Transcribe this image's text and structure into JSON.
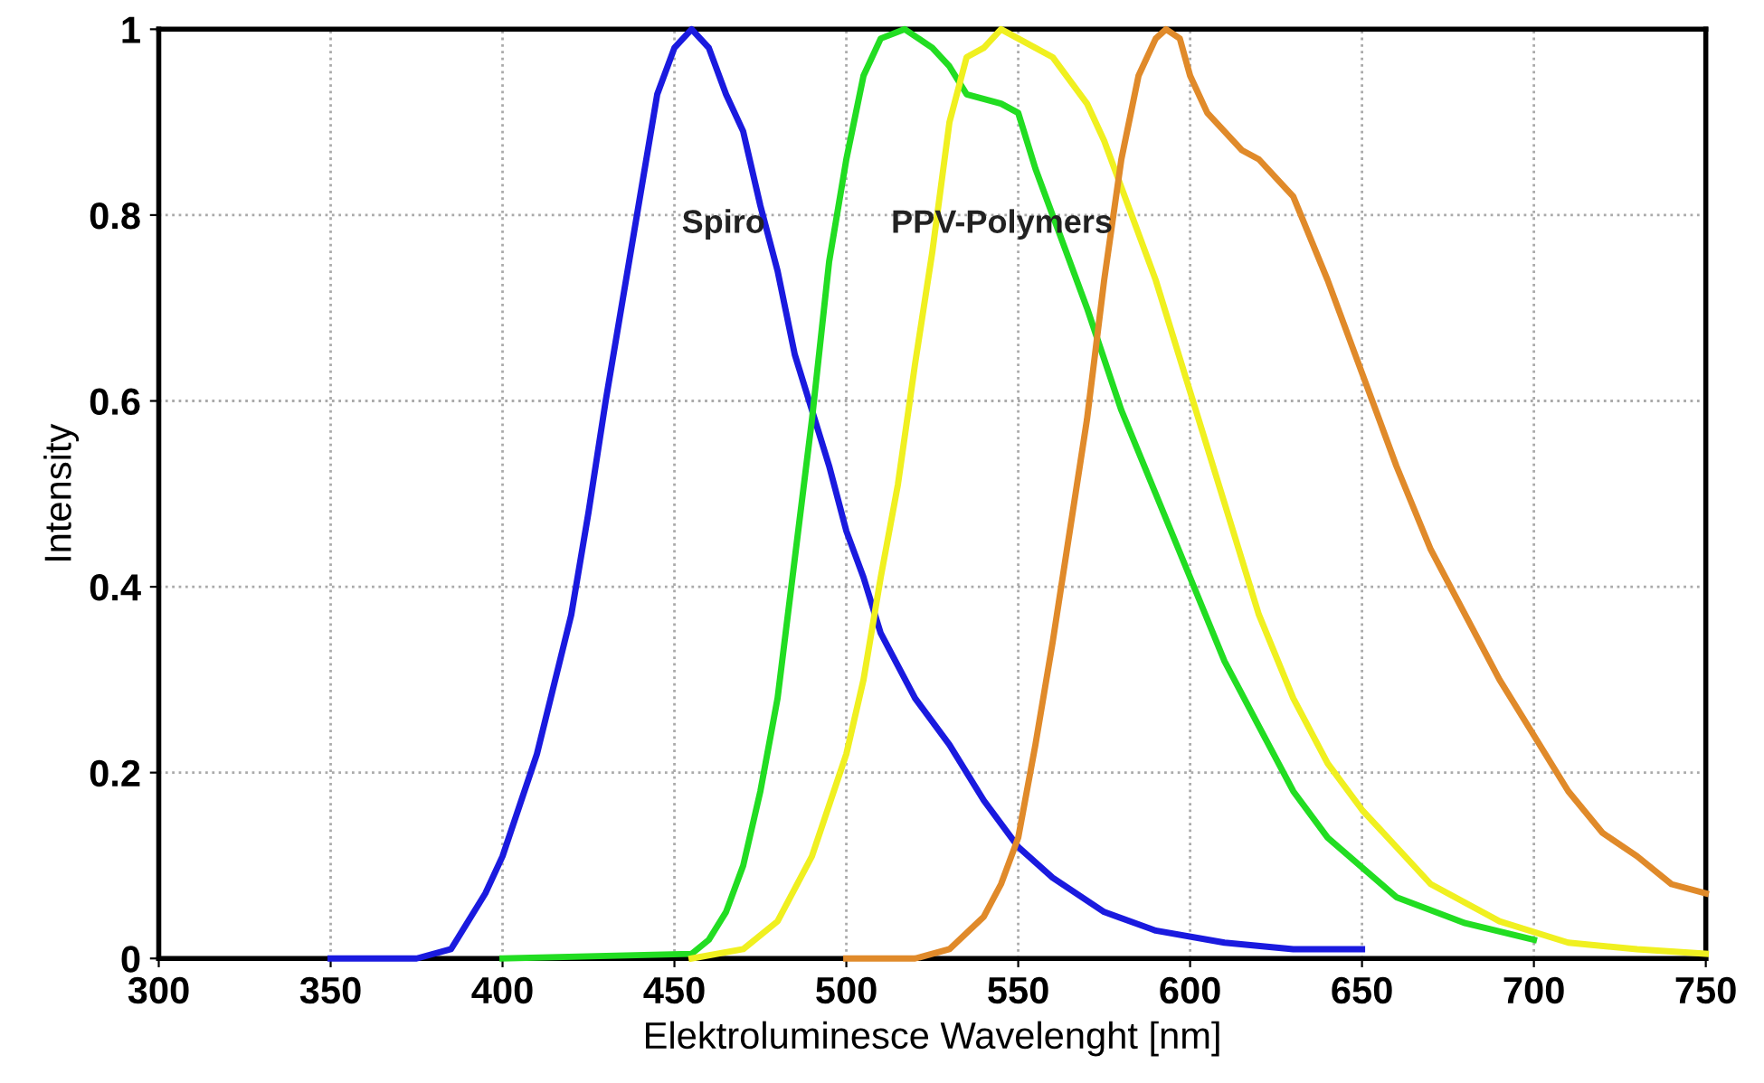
{
  "chart_data": {
    "type": "line",
    "xlabel": "Elektroluminesce Wavelenght [nm]",
    "ylabel": "Intensity",
    "xlim": [
      300,
      750
    ],
    "ylim": [
      0,
      1
    ],
    "xticks": [
      300,
      350,
      400,
      450,
      500,
      550,
      600,
      650,
      700,
      750
    ],
    "yticks": [
      0,
      0.2,
      0.4,
      0.6,
      0.8,
      1
    ],
    "grid": true,
    "marker": "none",
    "line_style": "solid",
    "annotations": [
      "Spiro",
      "PPV-Polymers"
    ],
    "series": [
      {
        "color": "#1a1adf",
        "x": [
          350,
          375,
          385,
          395,
          400,
          410,
          420,
          425,
          430,
          435,
          440,
          445,
          450,
          455,
          460,
          465,
          470,
          475,
          480,
          485,
          490,
          495,
          500,
          505,
          510,
          520,
          530,
          540,
          550,
          560,
          575,
          590,
          610,
          630,
          650
        ],
        "values": [
          0.0,
          0.0,
          0.01,
          0.07,
          0.11,
          0.22,
          0.37,
          0.48,
          0.6,
          0.71,
          0.82,
          0.93,
          0.98,
          1.0,
          0.98,
          0.93,
          0.89,
          0.81,
          0.74,
          0.65,
          0.59,
          0.53,
          0.46,
          0.41,
          0.35,
          0.28,
          0.23,
          0.17,
          0.12,
          0.087,
          0.05,
          0.03,
          0.017,
          0.01,
          0.01
        ]
      },
      {
        "color": "#22dd22",
        "x": [
          400,
          455,
          460,
          465,
          470,
          475,
          480,
          485,
          490,
          495,
          500,
          505,
          510,
          517,
          525,
          530,
          535,
          545,
          550,
          555,
          560,
          570,
          580,
          590,
          600,
          610,
          620,
          630,
          640,
          660,
          680,
          700
        ],
        "values": [
          0.0,
          0.005,
          0.02,
          0.05,
          0.1,
          0.18,
          0.28,
          0.43,
          0.58,
          0.75,
          0.86,
          0.95,
          0.99,
          1.0,
          0.98,
          0.96,
          0.93,
          0.92,
          0.91,
          0.85,
          0.8,
          0.7,
          0.59,
          0.5,
          0.41,
          0.32,
          0.25,
          0.18,
          0.13,
          0.066,
          0.038,
          0.02
        ]
      },
      {
        "color": "#f0f020",
        "x": [
          455,
          470,
          480,
          490,
          500,
          505,
          510,
          515,
          520,
          525,
          530,
          535,
          540,
          545,
          550,
          560,
          570,
          575,
          580,
          590,
          600,
          610,
          620,
          630,
          640,
          650,
          670,
          690,
          710,
          730,
          750
        ],
        "values": [
          0.0,
          0.01,
          0.04,
          0.11,
          0.22,
          0.3,
          0.41,
          0.51,
          0.64,
          0.76,
          0.9,
          0.97,
          0.98,
          1.0,
          0.99,
          0.97,
          0.92,
          0.88,
          0.83,
          0.73,
          0.61,
          0.49,
          0.37,
          0.28,
          0.21,
          0.16,
          0.08,
          0.04,
          0.017,
          0.01,
          0.005
        ]
      },
      {
        "color": "#e08a2a",
        "x": [
          500,
          520,
          530,
          540,
          545,
          550,
          555,
          560,
          565,
          570,
          575,
          580,
          585,
          590,
          593,
          597,
          600,
          605,
          610,
          615,
          620,
          625,
          630,
          640,
          650,
          660,
          670,
          680,
          690,
          700,
          710,
          720,
          730,
          740,
          750
        ],
        "values": [
          0.0,
          0.0,
          0.01,
          0.045,
          0.08,
          0.13,
          0.23,
          0.34,
          0.46,
          0.58,
          0.73,
          0.86,
          0.95,
          0.99,
          1.0,
          0.99,
          0.95,
          0.91,
          0.89,
          0.87,
          0.86,
          0.84,
          0.82,
          0.73,
          0.63,
          0.53,
          0.44,
          0.37,
          0.3,
          0.24,
          0.18,
          0.135,
          0.11,
          0.08,
          0.07
        ]
      }
    ]
  }
}
